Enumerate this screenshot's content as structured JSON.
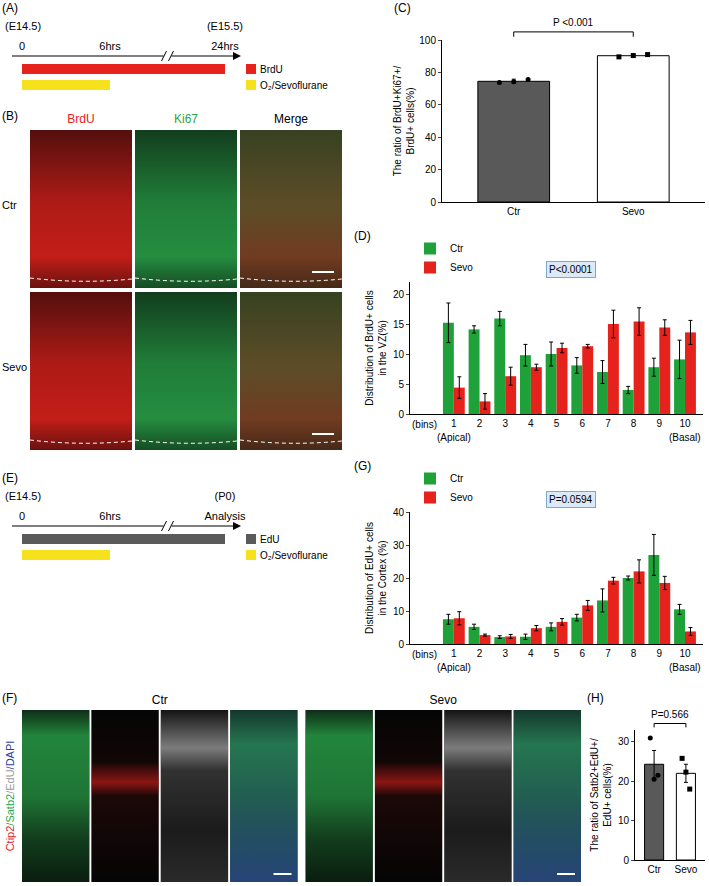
{
  "timelines": [
    {
      "panel": "(A)",
      "ticks": [
        {
          "label": "0",
          "above": "(E14.5)"
        },
        {
          "label": "6hrs"
        },
        {
          "label": "24hrs",
          "above": "(E15.5)"
        }
      ],
      "bars": [
        {
          "name": "BrdU",
          "color": "#e5221c",
          "ends_at": "24hrs"
        },
        {
          "name": "O₂/Sevoflurane",
          "color": "#f5e11c",
          "ends_at": "6hrs"
        }
      ]
    },
    {
      "panel": "(E)",
      "ticks": [
        {
          "label": "0",
          "above": "(E14.5)"
        },
        {
          "label": "6hrs"
        },
        {
          "label": "Analysis",
          "above": "(P0)"
        }
      ],
      "bars": [
        {
          "name": "EdU",
          "color": "#5a5a5a",
          "ends_at": "Analysis"
        },
        {
          "name": "O₂/Sevoflurane",
          "color": "#f5e11c",
          "ends_at": "6hrs"
        }
      ]
    }
  ],
  "images": [
    {
      "panel": "(B)",
      "rows": [
        "Ctr",
        "Sevo"
      ],
      "columns": [
        {
          "text": "BrdU",
          "color": "#e5221c"
        },
        {
          "text": "Ki67",
          "color": "#2aa54a"
        },
        {
          "text": "Merge",
          "color": "#000000"
        }
      ]
    },
    {
      "panel": "(F)",
      "groups": [
        "Ctr",
        "Sevo"
      ],
      "channels": [
        {
          "text": "Ctip2",
          "color": "#e5221c"
        },
        {
          "text": "/Satb2",
          "color": "#2aa54a"
        },
        {
          "text": "/EdU",
          "color": "#9a9a9a"
        },
        {
          "text": "/DAPI",
          "color": "#2d3d9a"
        }
      ]
    }
  ],
  "chart_data": [
    {
      "panel": "(C)",
      "type": "bar",
      "categories": [
        "Ctr",
        "Sevo"
      ],
      "values": [
        74.5,
        90.3
      ],
      "errors": [
        1.3,
        1.0
      ],
      "points": [
        [
          73.8,
          74.2,
          75.6
        ],
        [
          89.6,
          90.4,
          91.0
        ]
      ],
      "colors": [
        "#595959",
        "#ffffff"
      ],
      "ylabel": "The ratio of BrdU+Ki67+/\nBrdU+ cells(%)",
      "ylim": [
        0,
        100
      ],
      "yticks": [
        0,
        20,
        40,
        60,
        80,
        100
      ],
      "annotations": [
        {
          "text": "P <0.001",
          "between": [
            "Ctr",
            "Sevo"
          ]
        }
      ]
    },
    {
      "panel": "(D)",
      "type": "bar",
      "categories": [
        "1",
        "2",
        "3",
        "4",
        "5",
        "6",
        "7",
        "8",
        "9",
        "10"
      ],
      "series": [
        {
          "name": "Ctr",
          "color": "#1fa13a",
          "values": [
            15.2,
            14.1,
            15.9,
            9.8,
            10.0,
            8.1,
            7.0,
            4.0,
            7.8,
            9.1
          ],
          "errors": [
            3.3,
            0.6,
            1.2,
            1.8,
            2.0,
            1.3,
            1.9,
            0.6,
            1.5,
            3.2
          ]
        },
        {
          "name": "Sevo",
          "color": "#e5221c",
          "values": [
            4.4,
            2.1,
            6.3,
            7.8,
            11.0,
            11.3,
            15.0,
            15.4,
            14.4,
            13.6
          ],
          "errors": [
            1.8,
            1.3,
            1.5,
            0.5,
            0.8,
            0.3,
            2.3,
            2.3,
            1.3,
            2.0
          ]
        }
      ],
      "xlabel": "(bins)",
      "ylabel": "Distribution of BrdU+ cells\nin the VZ(%)",
      "ylim": [
        0,
        22
      ],
      "yticks": [
        0,
        5,
        10,
        15,
        20
      ],
      "legend": "top-left",
      "annotations": [
        {
          "text": "P<0.0001"
        },
        {
          "text": "(Apical)",
          "category": "1"
        },
        {
          "text": "(Basal)",
          "category": "10"
        }
      ]
    },
    {
      "panel": "(G)",
      "type": "bar",
      "categories": [
        "1",
        "2",
        "3",
        "4",
        "5",
        "6",
        "7",
        "8",
        "9",
        "10"
      ],
      "series": [
        {
          "name": "Ctr",
          "color": "#1fa13a",
          "values": [
            7.5,
            5.2,
            2.1,
            2.2,
            5.2,
            8.0,
            13.2,
            20.0,
            27.0,
            10.5
          ],
          "errors": [
            1.5,
            0.8,
            0.4,
            0.8,
            1.2,
            1.0,
            3.5,
            0.6,
            6.2,
            1.5
          ]
        },
        {
          "name": "Sevo",
          "color": "#e5221c",
          "values": [
            7.8,
            2.7,
            2.3,
            4.8,
            6.7,
            11.7,
            19.2,
            22.0,
            18.5,
            3.8
          ],
          "errors": [
            2.0,
            0.3,
            0.6,
            0.8,
            1.0,
            1.5,
            1.0,
            3.5,
            2.0,
            1.2
          ]
        }
      ],
      "xlabel": "(bins)",
      "ylabel": "Distribution of EdU+ cells\nin the Cortex (%)",
      "ylim": [
        0,
        40
      ],
      "yticks": [
        0,
        10,
        20,
        30,
        40
      ],
      "legend": "top-left",
      "annotations": [
        {
          "text": "P=0.0594"
        },
        {
          "text": "(Apical)",
          "category": "1"
        },
        {
          "text": "(Basal)",
          "category": "10"
        }
      ]
    },
    {
      "panel": "(H)",
      "type": "bar",
      "categories": [
        "Ctr",
        "Sevo"
      ],
      "values": [
        24.3,
        22.0
      ],
      "errors": [
        3.5,
        2.3
      ],
      "points": [
        [
          31.0,
          20.5,
          21.5
        ],
        [
          25.8,
          22.3,
          18.0
        ]
      ],
      "colors": [
        "#595959",
        "#ffffff"
      ],
      "ylabel": "The ratio of Satb2+EdU+/\nEdU+ cells(%)",
      "ylim": [
        0,
        33
      ],
      "yticks": [
        0,
        10,
        20,
        30
      ],
      "annotations": [
        {
          "text": "P=0.566",
          "between": [
            "Ctr",
            "Sevo"
          ]
        }
      ]
    }
  ]
}
